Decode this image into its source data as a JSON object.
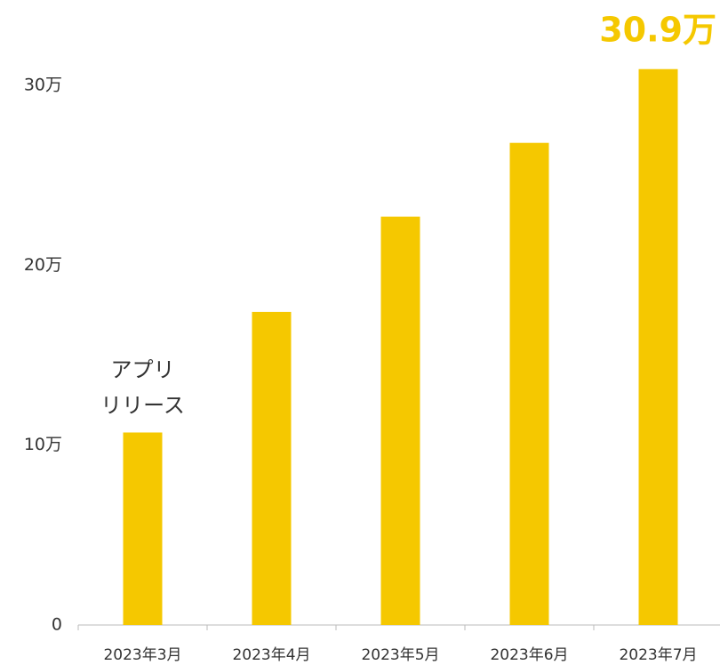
{
  "chart_data": {
    "type": "bar",
    "categories": [
      "2023年3月",
      "2023年4月",
      "2023年5月",
      "2023年6月",
      "2023年7月"
    ],
    "values": [
      10.7,
      17.4,
      22.7,
      26.8,
      30.9
    ],
    "value_labels": [
      null,
      null,
      null,
      null,
      "30.9万"
    ],
    "color": "#f5c800",
    "ylim": [
      0,
      34
    ],
    "yticks": [
      0,
      {
        "value": 10,
        "label": "10万"
      },
      {
        "value": 20,
        "label": "20万"
      },
      {
        "value": 30,
        "label": "30万"
      }
    ],
    "grid": false,
    "annotation": {
      "category": 0,
      "lines": [
        "アプリ",
        "リリース"
      ]
    }
  }
}
